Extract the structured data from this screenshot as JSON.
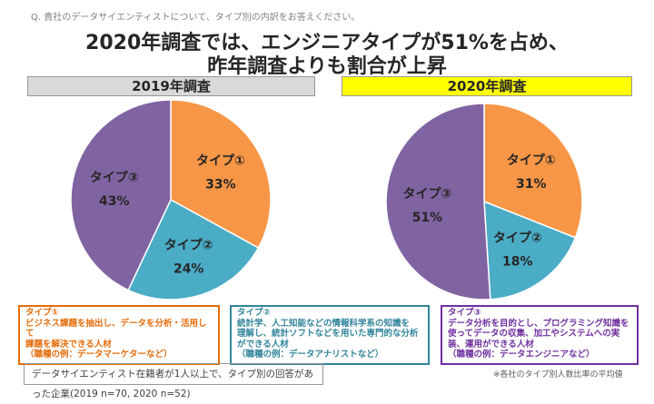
{
  "question": "Q. 貴社のデータサイエンティストについて、タイプ別の内訳をお答えください。",
  "headline": [
    "2020年調査では、エンジニアタイプが51%を占め、",
    "昨年調査よりも割合が上昇"
  ],
  "colors": {
    "type1": "#F79646",
    "type2": "#4BACC6",
    "type3": "#8064A2",
    "bar2019": "#D9D9D9",
    "bar2020": "#FFFF00"
  },
  "chart_data": [
    {
      "type": "pie",
      "title": "2019年調査",
      "labels": [
        "タイプ①",
        "タイプ②",
        "タイプ③"
      ],
      "values": [
        33,
        24,
        43
      ],
      "value_labels": [
        "33%",
        "24%",
        "43%"
      ]
    },
    {
      "type": "pie",
      "title": "2020年調査",
      "labels": [
        "タイプ①",
        "タイプ②",
        "タイプ③"
      ],
      "values": [
        31,
        18,
        51
      ],
      "value_labels": [
        "31%",
        "18%",
        "51%"
      ]
    }
  ],
  "descriptions": [
    {
      "title": "タイプ①",
      "lines": [
        "ビジネス課題を抽出し、データを分析・活用して",
        "課題を解決できる人材",
        "（職種の例：データマーケターなど）"
      ]
    },
    {
      "title": "タイプ②",
      "lines": [
        "統計学、人工知能などの情報科学系の知識を",
        "理解し、統計ソフトなどを用いた専門的な分析",
        "ができる人材",
        "（職種の例：データアナリストなど）"
      ]
    },
    {
      "title": "タイプ③",
      "lines": [
        "データ分析を目的とし、プログラミング知識を",
        "使ってデータの収集、加工やシステムへの実",
        "装、運用ができる人材",
        "（職種の例：データエンジニアなど）"
      ]
    }
  ],
  "footer": "データサイエンティスト在籍者が1人以上で、タイプ別の回答があった企業(2019 n=70, 2020 n=52)",
  "note": "※各社のタイプ別人数比率の平均値"
}
